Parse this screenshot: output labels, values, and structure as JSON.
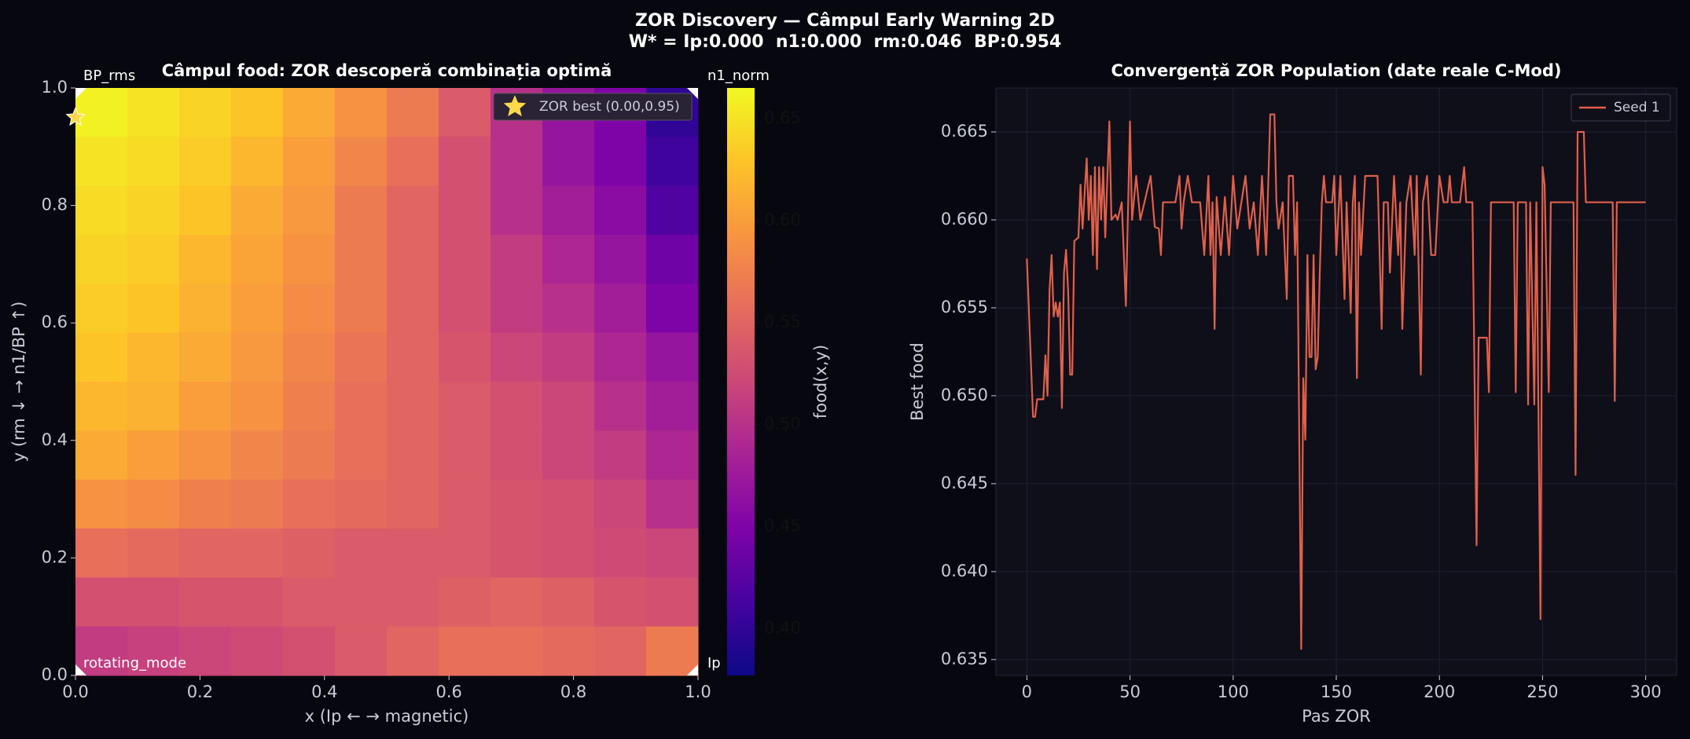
{
  "suptitle": [
    "ZOR Discovery — Câmpul Early Warning 2D",
    "W* = Ip:0.000  n1:0.000  rm:0.046  BP:0.954"
  ],
  "chart_data": [
    {
      "type": "heatmap",
      "title": "Câmpul food: ZOR descoperă combinația optimă",
      "xlabel": "x  (Ip ← → magnetic)",
      "ylabel": "y  (rm ↓ → n1/BP ↑)",
      "xlim": [
        0,
        1
      ],
      "ylim": [
        0,
        1
      ],
      "xticks": [
        {
          "value": 0,
          "label": "0.0"
        },
        0.2,
        0.4,
        0.6,
        0.8,
        {
          "value": 1,
          "label": "1.0"
        }
      ],
      "yticks": [
        {
          "value": 0,
          "label": "0.0"
        },
        0.2,
        0.4,
        0.6,
        0.8,
        {
          "value": 1,
          "label": "1.0"
        }
      ],
      "colormap": "plasma",
      "colorbar_label": "food(x,y)",
      "clim": [
        0.377,
        0.665
      ],
      "cticks": [
        {
          "value": 0.4,
          "label": "0.40"
        },
        0.45,
        {
          "value": 0.5,
          "label": "0.50"
        },
        0.55,
        {
          "value": 0.6,
          "label": "0.60"
        },
        0.65
      ],
      "z": [
        [
          0.66,
          0.65,
          0.64,
          0.63,
          0.61,
          0.59,
          0.57,
          0.54,
          0.5,
          0.47,
          0.45,
          0.4
        ],
        [
          0.65,
          0.645,
          0.635,
          0.62,
          0.6,
          0.58,
          0.56,
          0.53,
          0.5,
          0.47,
          0.45,
          0.41
        ],
        [
          0.645,
          0.64,
          0.63,
          0.61,
          0.595,
          0.57,
          0.55,
          0.53,
          0.5,
          0.48,
          0.46,
          0.42
        ],
        [
          0.64,
          0.635,
          0.62,
          0.605,
          0.59,
          0.57,
          0.55,
          0.53,
          0.51,
          0.49,
          0.47,
          0.44
        ],
        [
          0.635,
          0.63,
          0.615,
          0.6,
          0.585,
          0.57,
          0.55,
          0.53,
          0.51,
          0.5,
          0.48,
          0.45
        ],
        [
          0.63,
          0.62,
          0.61,
          0.595,
          0.58,
          0.565,
          0.55,
          0.535,
          0.52,
          0.51,
          0.49,
          0.47
        ],
        [
          0.62,
          0.615,
          0.6,
          0.59,
          0.575,
          0.56,
          0.55,
          0.54,
          0.53,
          0.52,
          0.5,
          0.48
        ],
        [
          0.61,
          0.6,
          0.59,
          0.58,
          0.57,
          0.56,
          0.55,
          0.54,
          0.53,
          0.52,
          0.51,
          0.49
        ],
        [
          0.59,
          0.585,
          0.575,
          0.57,
          0.56,
          0.555,
          0.55,
          0.54,
          0.535,
          0.53,
          0.52,
          0.5
        ],
        [
          0.56,
          0.555,
          0.55,
          0.55,
          0.545,
          0.54,
          0.54,
          0.54,
          0.535,
          0.53,
          0.525,
          0.52
        ],
        [
          0.53,
          0.53,
          0.535,
          0.535,
          0.54,
          0.54,
          0.54,
          0.545,
          0.55,
          0.545,
          0.535,
          0.53
        ],
        [
          0.51,
          0.515,
          0.52,
          0.525,
          0.53,
          0.54,
          0.55,
          0.56,
          0.56,
          0.555,
          0.55,
          0.57
        ]
      ],
      "corner_labels": [
        {
          "text": "BP_rms",
          "corner": "top-left"
        },
        {
          "text": "n1_norm",
          "corner": "top-right"
        },
        {
          "text": "rotating_mode",
          "corner": "bottom-left"
        },
        {
          "text": "Ip",
          "corner": "bottom-right"
        }
      ],
      "best": {
        "x": 0,
        "y": 0.95,
        "label": "ZOR best (0.00,0.95)",
        "color": "#ffd84a"
      }
    },
    {
      "type": "line",
      "title": "Convergență ZOR Population (date reale C-Mod)",
      "xlabel": "Pas ZOR",
      "ylabel": "Best food",
      "xlim": [
        -15,
        315
      ],
      "ylim": [
        0.6341,
        0.6675
      ],
      "xticks": [
        0,
        50,
        100,
        150,
        200,
        250,
        300
      ],
      "yticks": [
        0.635,
        {
          "value": 0.64,
          "label": "0.640"
        },
        0.645,
        {
          "value": 0.65,
          "label": "0.650"
        },
        0.655,
        {
          "value": 0.66,
          "label": "0.660"
        },
        0.665
      ],
      "grid": true,
      "legend": "upper right",
      "x": [
        0,
        3,
        4,
        5,
        8,
        9,
        10,
        11,
        12,
        13,
        14,
        15,
        16,
        17,
        18,
        19,
        20,
        21,
        22,
        23,
        25,
        26,
        27,
        29,
        30,
        31,
        32,
        33,
        34,
        35,
        36,
        37,
        38,
        40,
        41,
        43,
        44,
        46,
        48,
        50,
        51,
        53,
        55,
        57,
        60,
        62,
        64,
        65,
        66,
        67,
        72,
        74,
        75,
        76,
        78,
        80,
        84,
        86,
        88,
        89,
        90,
        91,
        92,
        94,
        96,
        98,
        100,
        102,
        104,
        106,
        108,
        110,
        112,
        114,
        116,
        118,
        120,
        121,
        122,
        124,
        126,
        127,
        129,
        130,
        131,
        133,
        134,
        135,
        136,
        137,
        138,
        139,
        140,
        141,
        142,
        143,
        144,
        145,
        148,
        149,
        150,
        152,
        154,
        155,
        157,
        158,
        159,
        160,
        161,
        162,
        164,
        170,
        172,
        173,
        175,
        176,
        178,
        180,
        181,
        182,
        184,
        186,
        188,
        189,
        191,
        192,
        194,
        196,
        198,
        200,
        202,
        204,
        205,
        206,
        210,
        212,
        213,
        216,
        218,
        219,
        223,
        224,
        225,
        236,
        237,
        238,
        242,
        243,
        244,
        246,
        247,
        249,
        250,
        251,
        253,
        254,
        265,
        266,
        267,
        270,
        271,
        284,
        285,
        286,
        300
      ],
      "series": [
        {
          "name": "Seed 1",
          "color": "#e0604a",
          "values": [
            0.6578,
            0.6488,
            0.6488,
            0.6498,
            0.6498,
            0.6523,
            0.65,
            0.656,
            0.658,
            0.6545,
            0.6553,
            0.6545,
            0.6553,
            0.6493,
            0.657,
            0.6583,
            0.656,
            0.6512,
            0.6512,
            0.6588,
            0.659,
            0.662,
            0.6595,
            0.6635,
            0.66,
            0.6625,
            0.658,
            0.663,
            0.6572,
            0.663,
            0.66,
            0.663,
            0.659,
            0.6656,
            0.66,
            0.6603,
            0.66,
            0.661,
            0.6551,
            0.6656,
            0.66,
            0.6625,
            0.66,
            0.661,
            0.6625,
            0.6596,
            0.6595,
            0.658,
            0.661,
            0.661,
            0.661,
            0.6625,
            0.6595,
            0.661,
            0.6625,
            0.661,
            0.661,
            0.658,
            0.6625,
            0.658,
            0.661,
            0.6538,
            0.6613,
            0.658,
            0.6613,
            0.658,
            0.6625,
            0.6595,
            0.661,
            0.6625,
            0.6595,
            0.661,
            0.658,
            0.6625,
            0.658,
            0.666,
            0.666,
            0.661,
            0.6595,
            0.661,
            0.6555,
            0.6625,
            0.6625,
            0.658,
            0.661,
            0.6356,
            0.651,
            0.6475,
            0.658,
            0.6522,
            0.6522,
            0.658,
            0.6515,
            0.6522,
            0.657,
            0.661,
            0.6625,
            0.661,
            0.661,
            0.6625,
            0.658,
            0.6625,
            0.6555,
            0.661,
            0.6547,
            0.661,
            0.6625,
            0.651,
            0.661,
            0.658,
            0.6625,
            0.6625,
            0.6538,
            0.661,
            0.661,
            0.657,
            0.6625,
            0.658,
            0.661,
            0.6538,
            0.661,
            0.6625,
            0.658,
            0.6625,
            0.6512,
            0.661,
            0.6625,
            0.658,
            0.658,
            0.6625,
            0.661,
            0.661,
            0.6625,
            0.661,
            0.661,
            0.663,
            0.661,
            0.661,
            0.6415,
            0.6533,
            0.6533,
            0.6502,
            0.661,
            0.661,
            0.6502,
            0.661,
            0.661,
            0.6495,
            0.661,
            0.6495,
            0.661,
            0.6373,
            0.663,
            0.662,
            0.6502,
            0.661,
            0.661,
            0.6455,
            0.665,
            0.665,
            0.661,
            0.661,
            0.6497,
            0.661,
            0.661
          ]
        }
      ]
    }
  ]
}
